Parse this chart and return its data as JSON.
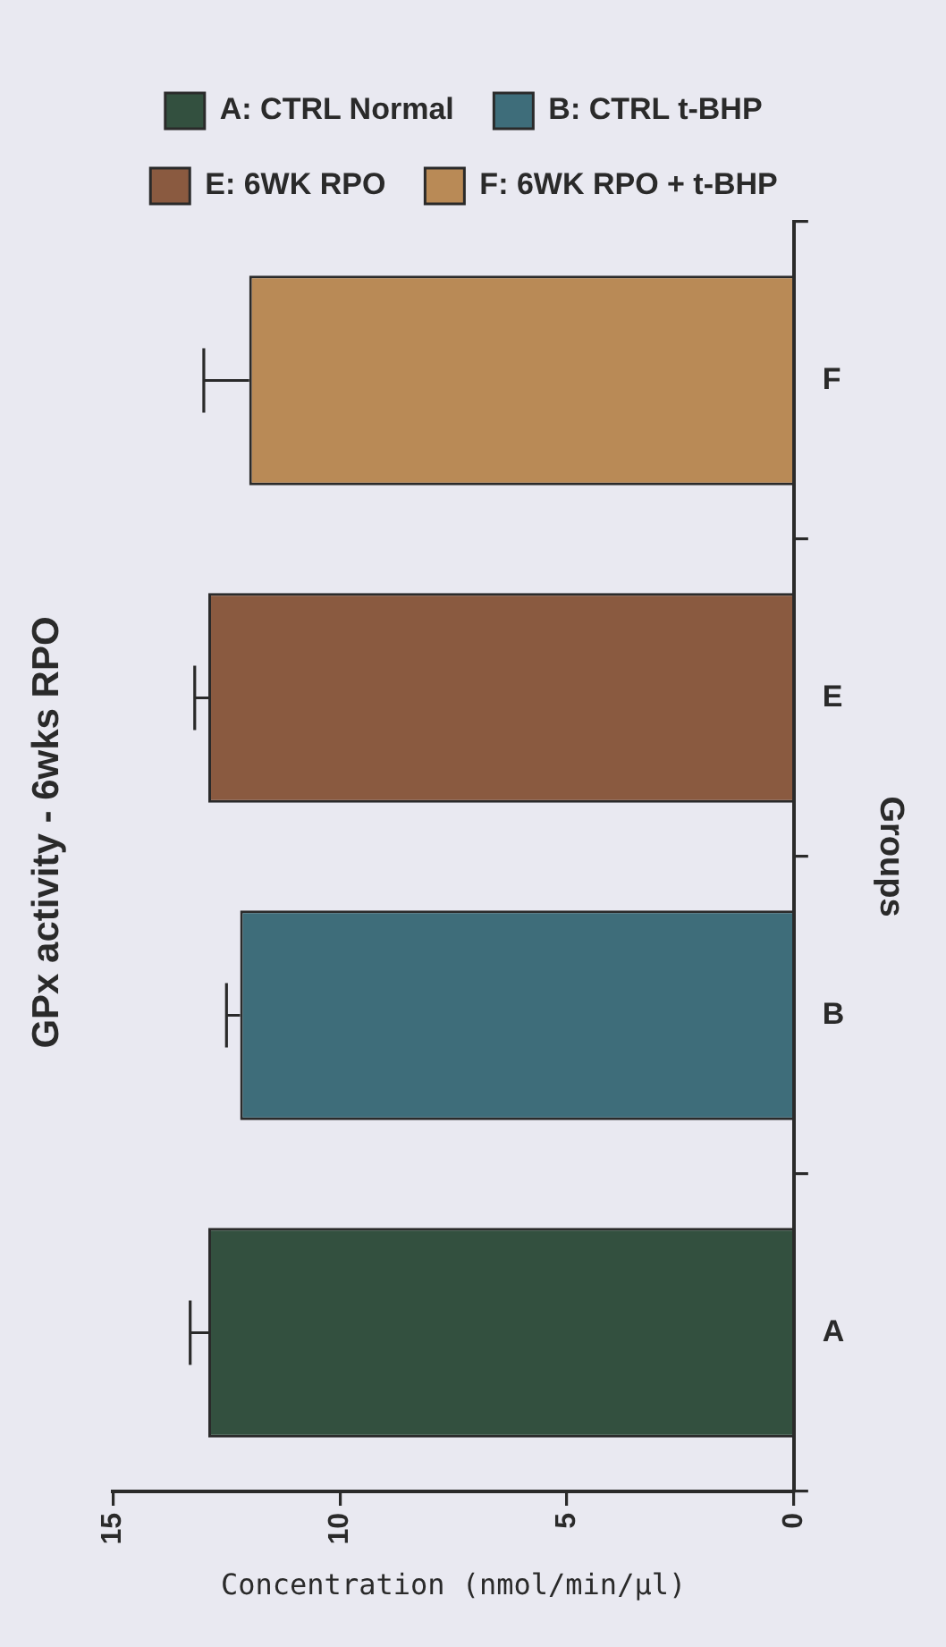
{
  "chart_data": {
    "type": "bar",
    "orientation": "horizontal",
    "title": "GPx activity - 6wks RPO",
    "xlabel": "Concentration (nmol/min/µl)",
    "ylabel": "Groups",
    "categories": [
      "F",
      "E",
      "B",
      "A"
    ],
    "series": [
      {
        "name": "A: CTRL Normal",
        "color": "#33503f",
        "values": [
          null,
          null,
          null,
          12.9
        ],
        "errors": [
          null,
          null,
          null,
          [
            12.9,
            13.3
          ]
        ]
      },
      {
        "name": "B: CTRL t-BHP",
        "color": "#3e6d7a",
        "values": [
          null,
          null,
          12.2,
          null
        ],
        "errors": [
          null,
          null,
          [
            12.2,
            12.5
          ],
          null
        ]
      },
      {
        "name": "E: 6WK RPO",
        "color": "#8a5a40",
        "values": [
          null,
          12.9,
          null,
          null
        ],
        "errors": [
          null,
          [
            12.9,
            13.2
          ],
          null,
          null
        ]
      },
      {
        "name": "F: 6WK RPO + t-BHP",
        "color": "#b98a56",
        "values": [
          12.0,
          null,
          null,
          null
        ],
        "errors": [
          [
            12.0,
            13.0
          ],
          null,
          null,
          null
        ]
      }
    ],
    "xlim": [
      15,
      0
    ],
    "xticks": [
      15,
      10,
      5,
      0
    ],
    "grid": false,
    "legend": "top"
  }
}
